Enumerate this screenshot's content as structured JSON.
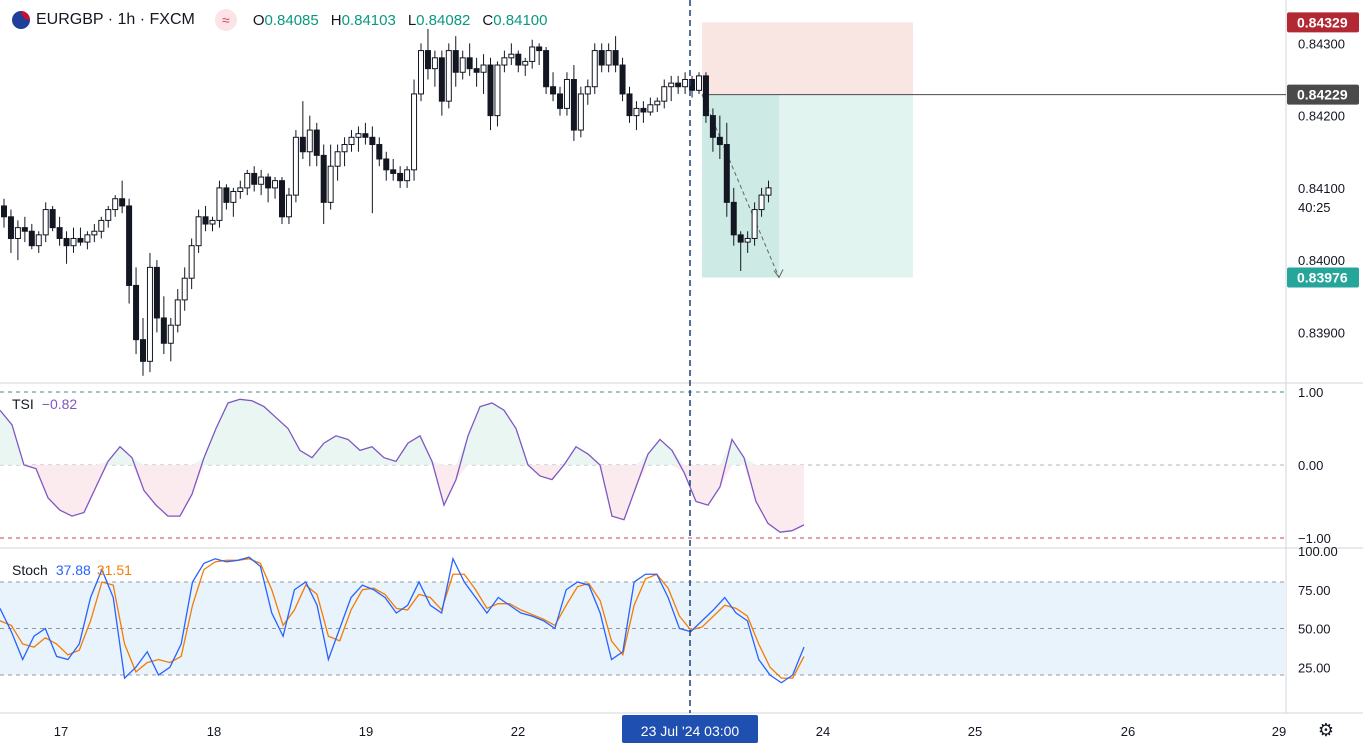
{
  "header": {
    "symbol": "EURGBP · 1h · FXCM",
    "indicator_icon": "wave-icon",
    "open_label": "O",
    "open": "0.84085",
    "high_label": "H",
    "high": "0.84103",
    "low_label": "L",
    "low": "0.84082",
    "close_label": "C",
    "close": "0.84100"
  },
  "price_axis": {
    "ticks": [
      "0.84300",
      "0.84200",
      "0.84100",
      "0.84000",
      "0.83900"
    ],
    "countdown": "40:25",
    "badges": {
      "stop": "0.84329",
      "entry": "0.84229",
      "target": "0.83976"
    }
  },
  "tsi": {
    "label": "TSI",
    "value": "−0.82",
    "ticks": [
      "1.00",
      "0.00",
      "−1.00"
    ]
  },
  "stoch": {
    "label": "Stoch",
    "k_value": "37.88",
    "d_value": "31.51",
    "ticks": [
      "100.00",
      "75.00",
      "50.00",
      "25.00"
    ]
  },
  "time_axis": {
    "ticks": [
      "17",
      "18",
      "19",
      "22",
      "24",
      "25",
      "26",
      "29"
    ],
    "crosshair_label": "23 Jul '24   03:00"
  },
  "colors": {
    "up": "#ffffff",
    "down": "#131722",
    "outline": "#131722",
    "tsi": "#7e57c2",
    "stoch_k": "#2962ff",
    "stoch_d": "#f57c00",
    "stop_zone": "#f9e6e3",
    "target_zone": "#e2f4ef",
    "target_zone_dark": "#cdebe4",
    "badge_red": "#b22833",
    "badge_dark": "#4a4a4a",
    "badge_green": "#26a69a",
    "crosshair": "#1e3e78"
  },
  "chart_data": [
    {
      "type": "candlestick",
      "title": "EURGBP · 1h · FXCM",
      "ylim": [
        0.8383,
        0.8436
      ],
      "x_range": [
        "17",
        "29"
      ],
      "position_tool": {
        "type": "short",
        "entry": 0.84229,
        "stop": 0.84329,
        "target": 0.83976
      },
      "candles": [
        [
          0.84075,
          0.84085,
          0.84045,
          0.8406
        ],
        [
          0.8406,
          0.8407,
          0.8401,
          0.8403
        ],
        [
          0.8403,
          0.84055,
          0.84,
          0.84045
        ],
        [
          0.84045,
          0.8406,
          0.84025,
          0.8404
        ],
        [
          0.8404,
          0.8405,
          0.84015,
          0.8402
        ],
        [
          0.8402,
          0.8404,
          0.8401,
          0.84035
        ],
        [
          0.84035,
          0.8408,
          0.84025,
          0.8407
        ],
        [
          0.8407,
          0.84075,
          0.8404,
          0.84045
        ],
        [
          0.84045,
          0.8406,
          0.8402,
          0.8403
        ],
        [
          0.8403,
          0.8404,
          0.83995,
          0.8402
        ],
        [
          0.8402,
          0.84045,
          0.8401,
          0.8403
        ],
        [
          0.8403,
          0.84045,
          0.8402,
          0.84025
        ],
        [
          0.84025,
          0.8404,
          0.84015,
          0.84035
        ],
        [
          0.84035,
          0.8405,
          0.84025,
          0.8404
        ],
        [
          0.8404,
          0.8406,
          0.8403,
          0.84055
        ],
        [
          0.84055,
          0.84075,
          0.84045,
          0.8407
        ],
        [
          0.8407,
          0.8409,
          0.8406,
          0.84085
        ],
        [
          0.84085,
          0.8411,
          0.84065,
          0.84075
        ],
        [
          0.84075,
          0.84085,
          0.8394,
          0.83965
        ],
        [
          0.83965,
          0.8399,
          0.8387,
          0.8389
        ],
        [
          0.8389,
          0.8392,
          0.8384,
          0.8386
        ],
        [
          0.8386,
          0.8401,
          0.83845,
          0.8399
        ],
        [
          0.8399,
          0.84,
          0.839,
          0.8392
        ],
        [
          0.8392,
          0.8395,
          0.8387,
          0.83885
        ],
        [
          0.83885,
          0.8392,
          0.8386,
          0.8391
        ],
        [
          0.8391,
          0.8396,
          0.839,
          0.83945
        ],
        [
          0.83945,
          0.8399,
          0.8393,
          0.83975
        ],
        [
          0.83975,
          0.8403,
          0.8396,
          0.8402
        ],
        [
          0.8402,
          0.8407,
          0.8401,
          0.8406
        ],
        [
          0.8406,
          0.84075,
          0.8404,
          0.8405
        ],
        [
          0.8405,
          0.8406,
          0.8404,
          0.84055
        ],
        [
          0.84055,
          0.8411,
          0.84045,
          0.841
        ],
        [
          0.841,
          0.84105,
          0.8407,
          0.8408
        ],
        [
          0.8408,
          0.841,
          0.8406,
          0.84095
        ],
        [
          0.84095,
          0.8411,
          0.84085,
          0.841
        ],
        [
          0.841,
          0.84125,
          0.8409,
          0.8412
        ],
        [
          0.8412,
          0.8413,
          0.84095,
          0.84105
        ],
        [
          0.84105,
          0.84125,
          0.8409,
          0.84115
        ],
        [
          0.84115,
          0.8412,
          0.8408,
          0.841
        ],
        [
          0.841,
          0.84115,
          0.84085,
          0.8411
        ],
        [
          0.8411,
          0.84115,
          0.8405,
          0.8406
        ],
        [
          0.8406,
          0.841,
          0.8405,
          0.8409
        ],
        [
          0.8409,
          0.8418,
          0.8408,
          0.8417
        ],
        [
          0.8417,
          0.8422,
          0.8414,
          0.8415
        ],
        [
          0.8415,
          0.842,
          0.8413,
          0.8418
        ],
        [
          0.8418,
          0.8419,
          0.8413,
          0.84145
        ],
        [
          0.84145,
          0.8416,
          0.8405,
          0.8408
        ],
        [
          0.8408,
          0.8416,
          0.8407,
          0.8413
        ],
        [
          0.8413,
          0.8416,
          0.8411,
          0.8415
        ],
        [
          0.8415,
          0.8417,
          0.8413,
          0.8416
        ],
        [
          0.8416,
          0.8418,
          0.8415,
          0.8417
        ],
        [
          0.8417,
          0.84185,
          0.8415,
          0.84175
        ],
        [
          0.84175,
          0.8419,
          0.8416,
          0.8417
        ],
        [
          0.8417,
          0.84185,
          0.84065,
          0.8416
        ],
        [
          0.8416,
          0.8417,
          0.8413,
          0.8414
        ],
        [
          0.8414,
          0.8415,
          0.8411,
          0.84125
        ],
        [
          0.84125,
          0.8414,
          0.8411,
          0.8412
        ],
        [
          0.8412,
          0.8413,
          0.841,
          0.8411
        ],
        [
          0.8411,
          0.8413,
          0.841,
          0.84125
        ],
        [
          0.84125,
          0.8425,
          0.8411,
          0.8423
        ],
        [
          0.8423,
          0.843,
          0.8422,
          0.8429
        ],
        [
          0.8429,
          0.8432,
          0.8425,
          0.84265
        ],
        [
          0.84265,
          0.8429,
          0.8424,
          0.8428
        ],
        [
          0.8428,
          0.8429,
          0.842,
          0.8422
        ],
        [
          0.8422,
          0.843,
          0.8421,
          0.8429
        ],
        [
          0.8429,
          0.8431,
          0.8424,
          0.8426
        ],
        [
          0.8426,
          0.8429,
          0.8425,
          0.8428
        ],
        [
          0.8428,
          0.843,
          0.84255,
          0.84265
        ],
        [
          0.84265,
          0.8428,
          0.8424,
          0.8426
        ],
        [
          0.8426,
          0.84285,
          0.8423,
          0.8427
        ],
        [
          0.8427,
          0.8428,
          0.8418,
          0.842
        ],
        [
          0.842,
          0.84275,
          0.84185,
          0.8427
        ],
        [
          0.8427,
          0.8429,
          0.8426,
          0.8428
        ],
        [
          0.8428,
          0.843,
          0.8427,
          0.84285
        ],
        [
          0.84285,
          0.8429,
          0.8426,
          0.8427
        ],
        [
          0.8427,
          0.8428,
          0.84255,
          0.84275
        ],
        [
          0.84275,
          0.84305,
          0.84265,
          0.84295
        ],
        [
          0.84295,
          0.843,
          0.8427,
          0.8429
        ],
        [
          0.8429,
          0.84295,
          0.8423,
          0.8424
        ],
        [
          0.8424,
          0.8426,
          0.8422,
          0.8423
        ],
        [
          0.8423,
          0.8424,
          0.842,
          0.8421
        ],
        [
          0.8421,
          0.8426,
          0.842,
          0.8425
        ],
        [
          0.8425,
          0.8427,
          0.84165,
          0.8418
        ],
        [
          0.8418,
          0.8424,
          0.8417,
          0.8423
        ],
        [
          0.8423,
          0.8425,
          0.84215,
          0.8424
        ],
        [
          0.8424,
          0.843,
          0.8423,
          0.8429
        ],
        [
          0.8429,
          0.843,
          0.8426,
          0.8427
        ],
        [
          0.8427,
          0.843,
          0.8426,
          0.8429
        ],
        [
          0.8429,
          0.8431,
          0.8426,
          0.8427
        ],
        [
          0.8427,
          0.8428,
          0.8422,
          0.8423
        ],
        [
          0.8423,
          0.8424,
          0.8419,
          0.842
        ],
        [
          0.842,
          0.8422,
          0.8418,
          0.8421
        ],
        [
          0.8421,
          0.8422,
          0.8419,
          0.84205
        ],
        [
          0.84205,
          0.84225,
          0.842,
          0.84215
        ],
        [
          0.84215,
          0.84225,
          0.84205,
          0.8422
        ],
        [
          0.8422,
          0.8425,
          0.8421,
          0.8424
        ],
        [
          0.8424,
          0.84255,
          0.8422,
          0.84245
        ],
        [
          0.84245,
          0.84255,
          0.8423,
          0.8424
        ],
        [
          0.8424,
          0.8426,
          0.8423,
          0.8425
        ],
        [
          0.8425,
          0.84255,
          0.84225,
          0.84235
        ],
        [
          0.84235,
          0.8426,
          0.8423,
          0.84255
        ],
        [
          0.84255,
          0.8426,
          0.8419,
          0.842
        ],
        [
          0.842,
          0.8421,
          0.8415,
          0.8417
        ],
        [
          0.8417,
          0.842,
          0.8414,
          0.8416
        ],
        [
          0.8416,
          0.8419,
          0.8406,
          0.8408
        ],
        [
          0.8408,
          0.841,
          0.8402,
          0.84035
        ],
        [
          0.84035,
          0.8404,
          0.83985,
          0.84025
        ],
        [
          0.84025,
          0.8404,
          0.8401,
          0.8403
        ],
        [
          0.8403,
          0.8408,
          0.8402,
          0.8407
        ],
        [
          0.8407,
          0.841,
          0.8406,
          0.8409
        ],
        [
          0.8409,
          0.8411,
          0.8408,
          0.841
        ]
      ]
    },
    {
      "type": "line",
      "title": "TSI",
      "ylim": [
        -1,
        1
      ],
      "levels": [
        1,
        0,
        -1
      ],
      "series": [
        {
          "name": "TSI",
          "values": [
            0.75,
            0.55,
            0.0,
            -0.05,
            -0.45,
            -0.62,
            -0.7,
            -0.65,
            -0.3,
            0.05,
            0.25,
            0.1,
            -0.35,
            -0.55,
            -0.7,
            -0.7,
            -0.4,
            0.1,
            0.5,
            0.85,
            0.9,
            0.88,
            0.8,
            0.65,
            0.5,
            0.2,
            0.1,
            0.3,
            0.4,
            0.35,
            0.2,
            0.25,
            0.1,
            0.05,
            0.3,
            0.4,
            0.05,
            -0.55,
            -0.2,
            0.4,
            0.8,
            0.85,
            0.75,
            0.5,
            0.0,
            -0.15,
            -0.2,
            0.0,
            0.25,
            0.15,
            0.0,
            -0.7,
            -0.75,
            -0.3,
            0.15,
            0.35,
            0.2,
            -0.1,
            -0.5,
            -0.55,
            -0.3,
            0.35,
            0.1,
            -0.5,
            -0.8,
            -0.92,
            -0.9,
            -0.82
          ]
        }
      ]
    },
    {
      "type": "line",
      "title": "Stoch",
      "ylim": [
        0,
        100
      ],
      "levels": [
        80,
        50,
        20
      ],
      "series": [
        {
          "name": "%K",
          "values": [
            63,
            48,
            30,
            45,
            50,
            32,
            30,
            40,
            70,
            88,
            70,
            18,
            25,
            35,
            20,
            25,
            40,
            80,
            92,
            95,
            93,
            94,
            96,
            90,
            60,
            45,
            75,
            80,
            65,
            30,
            50,
            70,
            78,
            75,
            70,
            60,
            65,
            80,
            65,
            60,
            95,
            80,
            70,
            60,
            70,
            65,
            60,
            58,
            55,
            50,
            75,
            80,
            78,
            60,
            30,
            35,
            80,
            85,
            85,
            70,
            50,
            48,
            55,
            62,
            70,
            60,
            55,
            30,
            20,
            15,
            20,
            38
          ]
        },
        {
          "name": "%D",
          "values": [
            55,
            52,
            40,
            38,
            44,
            40,
            33,
            36,
            55,
            80,
            78,
            40,
            22,
            28,
            30,
            28,
            32,
            65,
            88,
            93,
            94,
            94,
            95,
            92,
            75,
            52,
            62,
            78,
            72,
            45,
            42,
            62,
            75,
            76,
            72,
            63,
            62,
            72,
            70,
            62,
            85,
            85,
            75,
            63,
            66,
            66,
            62,
            59,
            56,
            52,
            65,
            77,
            79,
            68,
            42,
            33,
            65,
            82,
            85,
            76,
            58,
            49,
            51,
            58,
            65,
            63,
            58,
            40,
            25,
            18,
            18,
            32
          ]
        }
      ]
    }
  ]
}
